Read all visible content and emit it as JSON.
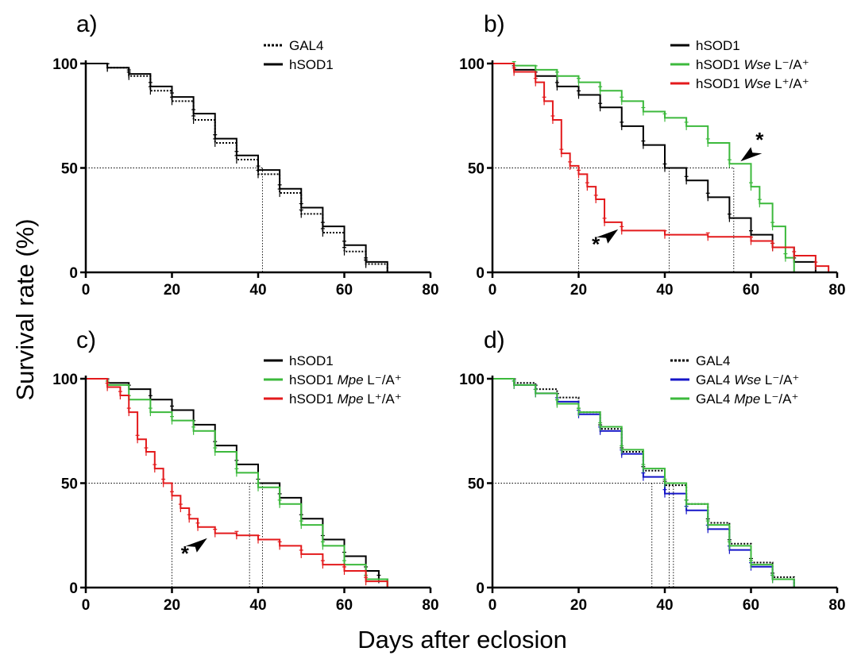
{
  "figure": {
    "ylabel": "Survival rate (%)",
    "xlabel": "Days after eclosion"
  },
  "colors": {
    "black": "#000000",
    "green": "#3cb93c",
    "red": "#e31a1c",
    "blue": "#1515c8"
  },
  "chart_data": [
    {
      "type": "line",
      "step": true,
      "panel_label": "a)",
      "xlim": [
        0,
        80
      ],
      "ylim": [
        0,
        100
      ],
      "xticks": [
        "0",
        "20",
        "40",
        "60",
        "80"
      ],
      "yticks": [
        "0",
        "50",
        "100"
      ],
      "grid": false,
      "legend": "top-right",
      "median_guides": [
        41
      ],
      "series": [
        {
          "name": "GAL4",
          "name_italic": "",
          "name_suffix": "",
          "color": "black",
          "dash": "dotted",
          "x": [
            0,
            5,
            10,
            15,
            20,
            25,
            30,
            35,
            40,
            45,
            50,
            55,
            60,
            65,
            70
          ],
          "y": [
            100,
            98,
            94,
            87,
            82,
            73,
            62,
            54,
            47,
            38,
            28,
            19,
            10,
            4,
            0
          ]
        },
        {
          "name": "hSOD1",
          "name_italic": "",
          "name_suffix": "",
          "color": "black",
          "dash": "solid",
          "x": [
            0,
            5,
            10,
            15,
            20,
            25,
            30,
            35,
            40,
            45,
            50,
            55,
            60,
            65,
            70
          ],
          "y": [
            100,
            98,
            95,
            89,
            84,
            76,
            64,
            56,
            49,
            40,
            31,
            22,
            13,
            5,
            0
          ]
        }
      ]
    },
    {
      "type": "line",
      "step": true,
      "panel_label": "b)",
      "xlim": [
        0,
        80
      ],
      "ylim": [
        0,
        100
      ],
      "xticks": [
        "0",
        "20",
        "40",
        "60",
        "80"
      ],
      "yticks": [
        "0",
        "50",
        "100"
      ],
      "grid": false,
      "legend": "top-right",
      "median_guides": [
        20,
        41,
        56
      ],
      "annotations": [
        {
          "text": "*",
          "x": 62,
          "y": 60,
          "target": "hSOD1 Wse L-/A+"
        },
        {
          "text": "*",
          "x": 24,
          "y": 10,
          "target": "hSOD1 Wse L+/A+"
        }
      ],
      "series": [
        {
          "name": "hSOD1",
          "name_italic": "",
          "name_suffix": "",
          "color": "black",
          "dash": "solid",
          "x": [
            0,
            5,
            10,
            15,
            20,
            25,
            30,
            35,
            40,
            45,
            50,
            55,
            60,
            65,
            70,
            75
          ],
          "y": [
            100,
            97,
            94,
            89,
            85,
            79,
            70,
            61,
            50,
            44,
            36,
            26,
            18,
            12,
            5,
            0
          ]
        },
        {
          "name": "hSOD1 ",
          "name_italic": "Wse",
          "name_suffix": " L⁻/A⁺",
          "color": "green",
          "dash": "solid",
          "x": [
            0,
            5,
            10,
            15,
            20,
            25,
            30,
            35,
            40,
            45,
            50,
            55,
            60,
            62,
            65,
            68,
            70
          ],
          "y": [
            100,
            99,
            97,
            94,
            91,
            87,
            82,
            77,
            74,
            70,
            62,
            52,
            41,
            33,
            22,
            7,
            0
          ]
        },
        {
          "name": "hSOD1 ",
          "name_italic": "Wse",
          "name_suffix": " L⁺/A⁺",
          "color": "red",
          "dash": "solid",
          "x": [
            0,
            5,
            10,
            12,
            14,
            16,
            18,
            20,
            22,
            24,
            26,
            30,
            40,
            50,
            60,
            65,
            70,
            75,
            78
          ],
          "y": [
            100,
            96,
            91,
            82,
            73,
            57,
            51,
            47,
            41,
            35,
            24,
            20,
            18,
            17,
            15,
            12,
            8,
            3,
            0
          ]
        }
      ]
    },
    {
      "type": "line",
      "step": true,
      "panel_label": "c)",
      "xlim": [
        0,
        80
      ],
      "ylim": [
        0,
        100
      ],
      "xticks": [
        "0",
        "20",
        "40",
        "60",
        "80"
      ],
      "yticks": [
        "0",
        "50",
        "100"
      ],
      "grid": false,
      "legend": "top-right",
      "median_guides": [
        20,
        38,
        41
      ],
      "annotations": [
        {
          "text": "*",
          "x": 23,
          "y": 13,
          "target": "hSOD1 Mpe L+/A+"
        }
      ],
      "series": [
        {
          "name": "hSOD1",
          "name_italic": "",
          "name_suffix": "",
          "color": "black",
          "dash": "solid",
          "x": [
            0,
            5,
            10,
            15,
            20,
            25,
            30,
            35,
            40,
            45,
            50,
            55,
            60,
            65,
            68,
            70
          ],
          "y": [
            100,
            98,
            95,
            90,
            85,
            78,
            68,
            59,
            50,
            43,
            33,
            23,
            15,
            8,
            4,
            0
          ]
        },
        {
          "name": "hSOD1 ",
          "name_italic": "Mpe",
          "name_suffix": " L⁻/A⁺",
          "color": "green",
          "dash": "solid",
          "x": [
            0,
            5,
            10,
            15,
            20,
            25,
            30,
            35,
            40,
            45,
            50,
            55,
            60,
            65,
            70
          ],
          "y": [
            100,
            97,
            90,
            84,
            80,
            75,
            65,
            55,
            48,
            40,
            30,
            20,
            11,
            4,
            0
          ]
        },
        {
          "name": "hSOD1 ",
          "name_italic": "Mpe",
          "name_suffix": " L⁺/A⁺",
          "color": "red",
          "dash": "solid",
          "x": [
            0,
            5,
            8,
            10,
            12,
            14,
            16,
            18,
            20,
            22,
            24,
            26,
            30,
            35,
            40,
            45,
            50,
            55,
            60,
            65,
            70
          ],
          "y": [
            100,
            96,
            92,
            84,
            71,
            65,
            57,
            50,
            44,
            38,
            33,
            29,
            26,
            25,
            23,
            20,
            16,
            11,
            8,
            3,
            0
          ]
        }
      ]
    },
    {
      "type": "line",
      "step": true,
      "panel_label": "d)",
      "xlim": [
        0,
        80
      ],
      "ylim": [
        0,
        100
      ],
      "xticks": [
        "0",
        "20",
        "40",
        "60",
        "80"
      ],
      "yticks": [
        "0",
        "50",
        "100"
      ],
      "grid": false,
      "legend": "top-right",
      "median_guides": [
        37,
        41,
        42
      ],
      "series": [
        {
          "name": "GAL4",
          "name_italic": "",
          "name_suffix": "",
          "color": "black",
          "dash": "dotted",
          "x": [
            0,
            5,
            10,
            15,
            20,
            25,
            30,
            35,
            40,
            45,
            50,
            55,
            60,
            65,
            70
          ],
          "y": [
            100,
            98,
            95,
            91,
            84,
            76,
            65,
            56,
            49,
            40,
            31,
            21,
            12,
            5,
            0
          ]
        },
        {
          "name": "GAL4 ",
          "name_italic": "Wse",
          "name_suffix": " L⁻/A⁺",
          "color": "blue",
          "dash": "solid",
          "x": [
            0,
            5,
            10,
            15,
            20,
            25,
            30,
            35,
            40,
            45,
            50,
            55,
            60,
            65,
            70
          ],
          "y": [
            100,
            97,
            93,
            89,
            83,
            75,
            64,
            53,
            45,
            37,
            28,
            18,
            10,
            4,
            0
          ]
        },
        {
          "name": "GAL4 ",
          "name_italic": "Mpe",
          "name_suffix": " L⁻/A⁺",
          "color": "green",
          "dash": "solid",
          "x": [
            0,
            5,
            10,
            15,
            20,
            25,
            30,
            35,
            40,
            45,
            50,
            55,
            60,
            65,
            70
          ],
          "y": [
            100,
            97,
            93,
            88,
            84,
            77,
            66,
            57,
            50,
            40,
            30,
            20,
            11,
            4,
            0
          ]
        }
      ]
    }
  ]
}
